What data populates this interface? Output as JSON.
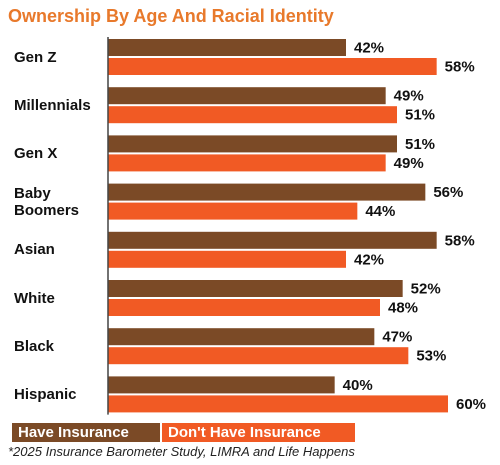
{
  "chart_data": {
    "type": "bar",
    "orientation": "horizontal",
    "title": "Ownership By Age And Racial Identity",
    "categories": [
      "Gen Z",
      "Millennials",
      "Gen X",
      "Baby Boomers",
      "Asian",
      "White",
      "Black",
      "Hispanic"
    ],
    "series": [
      {
        "name": "Have Insurance",
        "color": "#7b4a26",
        "values": [
          42,
          49,
          51,
          56,
          58,
          52,
          47,
          40
        ],
        "value_labels": [
          "42%",
          "49%",
          "51%",
          "56%",
          "58%",
          "52%",
          "47%",
          "40%"
        ]
      },
      {
        "name": "Don't Have Insurance",
        "color": "#f15a24",
        "values": [
          58,
          51,
          49,
          44,
          42,
          48,
          53,
          60
        ],
        "value_labels": [
          "58%",
          "51%",
          "49%",
          "44%",
          "42%",
          "48%",
          "53%",
          "60%"
        ]
      }
    ],
    "footnote": "*2025 Insurance Barometer Study, LIMRA and Life Happens"
  }
}
